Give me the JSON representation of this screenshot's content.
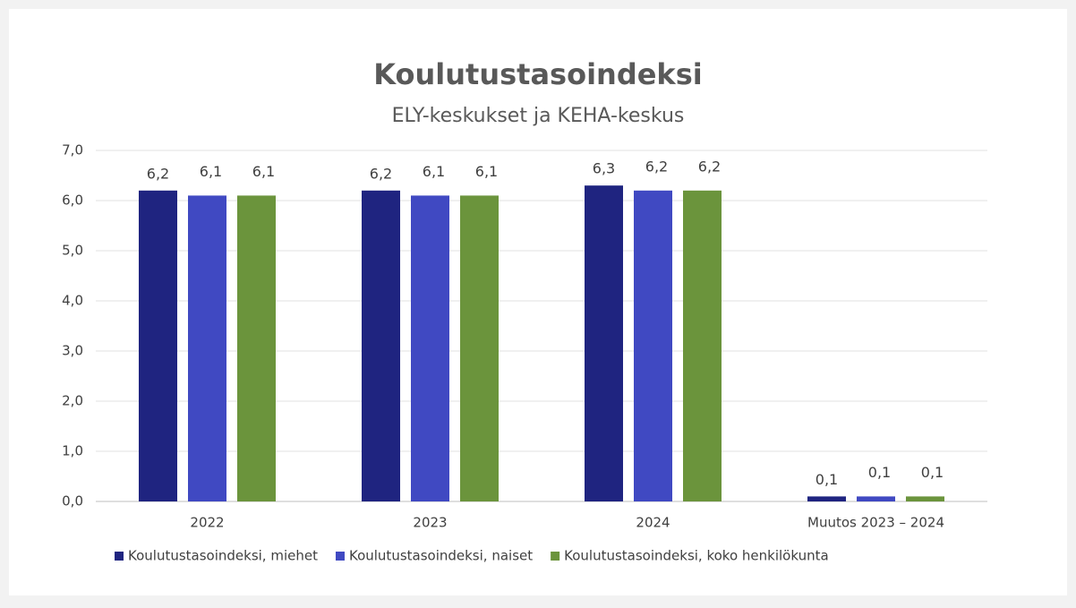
{
  "chart_data": {
    "type": "bar",
    "title": "Koulutustasoindeksi",
    "subtitle": "ELY-keskukset ja KEHA-keskus",
    "categories": [
      "2022",
      "2023",
      "2024",
      "Muutos 2023 – 2024"
    ],
    "series": [
      {
        "name": "Koulutustasoindeksi, miehet",
        "color": "#1f2480",
        "values": [
          6.2,
          6.2,
          6.3,
          0.1
        ],
        "value_labels": [
          "6,2",
          "6,2",
          "6,3",
          "0,1"
        ]
      },
      {
        "name": "Koulutustasoindeksi, naiset",
        "color": "#4049c2",
        "values": [
          6.1,
          6.1,
          6.2,
          0.1
        ],
        "value_labels": [
          "6,1",
          "6,1",
          "6,2",
          "0,1"
        ]
      },
      {
        "name": "Koulutustasoindeksi, koko henkilökunta",
        "color": "#6b943c",
        "values": [
          6.1,
          6.1,
          6.2,
          0.1
        ],
        "value_labels": [
          "6,1",
          "6,1",
          "6,2",
          "0,1"
        ]
      }
    ],
    "ylim": [
      0,
      7
    ],
    "yticks": [
      {
        "value": 0,
        "label": "0,0"
      },
      {
        "value": 1,
        "label": "1,0"
      },
      {
        "value": 2,
        "label": "2,0"
      },
      {
        "value": 3,
        "label": "3,0"
      },
      {
        "value": 4,
        "label": "4,0"
      },
      {
        "value": 5,
        "label": "5,0"
      },
      {
        "value": 6,
        "label": "6,0"
      },
      {
        "value": 7,
        "label": "7,0"
      }
    ],
    "grid": true,
    "legend": "bottom"
  }
}
